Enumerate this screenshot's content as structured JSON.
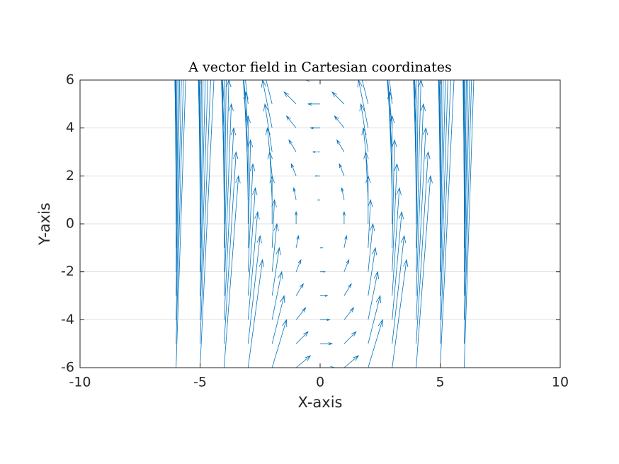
{
  "chart_data": {
    "type": "quiver",
    "title": "A vector field in Cartesian coordinates",
    "x_label": "X-axis",
    "y_label": "Y-axis",
    "color": "#0072bd",
    "grid": "y",
    "xlim": [
      -10,
      10
    ],
    "ylim": [
      -6,
      6
    ],
    "xticks": [
      -10,
      -5,
      0,
      5,
      10
    ],
    "yticks": [
      -6,
      -4,
      -2,
      0,
      2,
      4,
      6
    ],
    "x": [
      -6,
      -5,
      -4,
      -3,
      -2,
      -1,
      0,
      1,
      2,
      3,
      4,
      5,
      6
    ],
    "y": [
      -6,
      -5,
      -4,
      -3,
      -2,
      -1,
      0,
      1,
      2,
      3,
      4,
      5,
      6
    ],
    "u": [
      [
        0.6,
        0.6,
        0.6,
        0.6,
        0.6,
        0.6,
        0.6,
        0.6,
        0.6,
        0.6,
        0.6,
        0.6,
        0.6
      ],
      [
        0.5,
        0.5,
        0.5,
        0.5,
        0.5,
        0.5,
        0.5,
        0.5,
        0.5,
        0.5,
        0.5,
        0.5,
        0.5
      ],
      [
        0.4,
        0.4,
        0.4,
        0.4,
        0.4,
        0.4,
        0.4,
        0.4,
        0.4,
        0.4,
        0.4,
        0.4,
        0.4
      ],
      [
        0.3,
        0.3,
        0.3,
        0.3,
        0.3,
        0.3,
        0.3,
        0.3,
        0.3,
        0.3,
        0.3,
        0.3,
        0.3
      ],
      [
        0.2,
        0.2,
        0.2,
        0.2,
        0.2,
        0.2,
        0.2,
        0.2,
        0.2,
        0.2,
        0.2,
        0.2,
        0.2
      ],
      [
        0.1,
        0.1,
        0.1,
        0.1,
        0.1,
        0.1,
        0.1,
        0.1,
        0.1,
        0.1,
        0.1,
        0.1,
        0.1
      ],
      [
        0,
        0,
        0,
        0,
        0,
        0,
        0,
        0,
        0,
        0,
        0,
        0,
        0
      ],
      [
        -0.1,
        -0.1,
        -0.1,
        -0.1,
        -0.1,
        -0.1,
        -0.1,
        -0.1,
        -0.1,
        -0.1,
        -0.1,
        -0.1,
        -0.1
      ],
      [
        -0.2,
        -0.2,
        -0.2,
        -0.2,
        -0.2,
        -0.2,
        -0.2,
        -0.2,
        -0.2,
        -0.2,
        -0.2,
        -0.2,
        -0.2
      ],
      [
        -0.3,
        -0.3,
        -0.3,
        -0.3,
        -0.3,
        -0.3,
        -0.3,
        -0.3,
        -0.3,
        -0.3,
        -0.3,
        -0.3,
        -0.3
      ],
      [
        -0.4,
        -0.4,
        -0.4,
        -0.4,
        -0.4,
        -0.4,
        -0.4,
        -0.4,
        -0.4,
        -0.4,
        -0.4,
        -0.4,
        -0.4
      ],
      [
        -0.5,
        -0.5,
        -0.5,
        -0.5,
        -0.5,
        -0.5,
        -0.5,
        -0.5,
        -0.5,
        -0.5,
        -0.5,
        -0.5,
        -0.5
      ],
      [
        -0.6,
        -0.6,
        -0.6,
        -0.6,
        -0.6,
        -0.6,
        -0.6,
        -0.6,
        -0.6,
        -0.6,
        -0.6,
        -0.6,
        -0.6
      ]
    ],
    "v": [
      [
        18,
        12.5,
        8,
        4.5,
        2,
        0.5,
        0,
        0.5,
        2,
        4.5,
        8,
        12.5,
        18
      ],
      [
        18,
        12.5,
        8,
        4.5,
        2,
        0.5,
        0,
        0.5,
        2,
        4.5,
        8,
        12.5,
        18
      ],
      [
        18,
        12.5,
        8,
        4.5,
        2,
        0.5,
        0,
        0.5,
        2,
        4.5,
        8,
        12.5,
        18
      ],
      [
        18,
        12.5,
        8,
        4.5,
        2,
        0.5,
        0,
        0.5,
        2,
        4.5,
        8,
        12.5,
        18
      ],
      [
        18,
        12.5,
        8,
        4.5,
        2,
        0.5,
        0,
        0.5,
        2,
        4.5,
        8,
        12.5,
        18
      ],
      [
        18,
        12.5,
        8,
        4.5,
        2,
        0.5,
        0,
        0.5,
        2,
        4.5,
        8,
        12.5,
        18
      ],
      [
        18,
        12.5,
        8,
        4.5,
        2,
        0.5,
        0,
        0.5,
        2,
        4.5,
        8,
        12.5,
        18
      ],
      [
        18,
        12.5,
        8,
        4.5,
        2,
        0.5,
        0,
        0.5,
        2,
        4.5,
        8,
        12.5,
        18
      ],
      [
        18,
        12.5,
        8,
        4.5,
        2,
        0.5,
        0,
        0.5,
        2,
        4.5,
        8,
        12.5,
        18
      ],
      [
        18,
        12.5,
        8,
        4.5,
        2,
        0.5,
        0,
        0.5,
        2,
        4.5,
        8,
        12.5,
        18
      ],
      [
        18,
        12.5,
        8,
        4.5,
        2,
        0.5,
        0,
        0.5,
        2,
        4.5,
        8,
        12.5,
        18
      ],
      [
        18,
        12.5,
        8,
        4.5,
        2,
        0.5,
        0,
        0.5,
        2,
        4.5,
        8,
        12.5,
        18
      ],
      [
        18,
        12.5,
        8,
        4.5,
        2,
        0.5,
        0,
        0.5,
        2,
        4.5,
        8,
        12.5,
        18
      ]
    ]
  }
}
